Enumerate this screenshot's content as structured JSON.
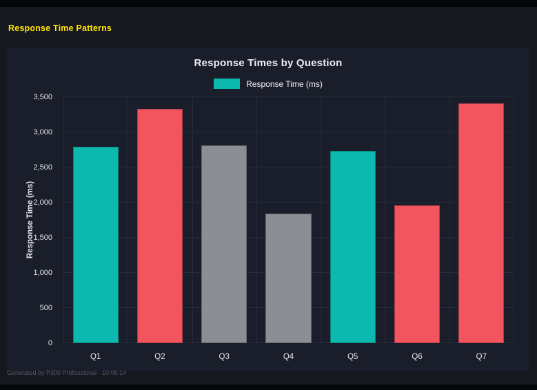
{
  "page": {
    "header_title": "Response Time Patterns",
    "footer": "Generated by P300 Professional - 10:05:14"
  },
  "colors": {
    "teal": "#0cb9ae",
    "red": "#f2555f",
    "gray": "#8d8d95",
    "accent_yellow": "#ffe400",
    "grid": "#272c3a",
    "panel_bg": "#1a1e2b",
    "page_bg": "#15181f"
  },
  "chart_data": {
    "type": "bar",
    "title": "Response Times by Question",
    "legend": [
      {
        "label": "Response Time (ms)",
        "color_key": "teal"
      }
    ],
    "legend_position": "top",
    "categories": [
      "Q1",
      "Q2",
      "Q3",
      "Q4",
      "Q5",
      "Q6",
      "Q7"
    ],
    "values": [
      2790,
      3330,
      2810,
      1840,
      2740,
      1960,
      3410
    ],
    "bar_colors": [
      "teal",
      "red",
      "gray",
      "gray",
      "teal",
      "red",
      "red"
    ],
    "xlabel": "",
    "ylabel": "Response Time (ms)",
    "ylim": [
      0,
      3500
    ],
    "grid": true,
    "yticks": [
      {
        "value": 0,
        "label": "0"
      },
      {
        "value": 500,
        "label": "500"
      },
      {
        "value": 1000,
        "label": "1,000"
      },
      {
        "value": 1500,
        "label": "1,500"
      },
      {
        "value": 2000,
        "label": "2,000"
      },
      {
        "value": 2500,
        "label": "2,500"
      },
      {
        "value": 3000,
        "label": "3,000"
      },
      {
        "value": 3500,
        "label": "3,500"
      }
    ]
  }
}
